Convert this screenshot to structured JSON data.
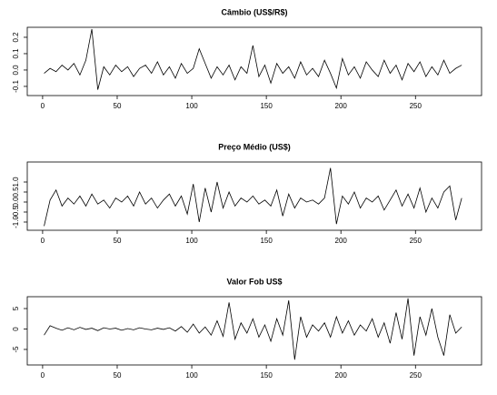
{
  "chart_data": [
    {
      "type": "line",
      "title": "Câmbio (US$/R$)",
      "color": "#000000",
      "x": [
        1,
        5,
        9,
        13,
        17,
        21,
        25,
        29,
        33,
        37,
        41,
        45,
        49,
        53,
        57,
        61,
        65,
        69,
        73,
        77,
        81,
        85,
        89,
        93,
        97,
        101,
        105,
        109,
        113,
        117,
        121,
        125,
        129,
        133,
        137,
        141,
        145,
        149,
        153,
        157,
        161,
        165,
        169,
        173,
        177,
        181,
        185,
        189,
        193,
        197,
        201,
        205,
        209,
        213,
        217,
        221,
        225,
        229,
        233,
        237,
        241,
        245,
        249,
        253,
        257,
        261,
        265,
        269,
        273,
        277,
        281
      ],
      "values": [
        -0.02,
        0.01,
        -0.01,
        0.03,
        0.0,
        0.04,
        -0.03,
        0.06,
        0.25,
        -0.12,
        0.02,
        -0.03,
        0.03,
        -0.01,
        0.02,
        -0.04,
        0.01,
        0.03,
        -0.02,
        0.05,
        -0.03,
        0.02,
        -0.05,
        0.04,
        -0.02,
        0.01,
        0.13,
        0.04,
        -0.05,
        0.02,
        -0.03,
        0.03,
        -0.06,
        0.02,
        -0.02,
        0.15,
        -0.04,
        0.03,
        -0.08,
        0.04,
        -0.02,
        0.02,
        -0.05,
        0.05,
        -0.03,
        0.01,
        -0.04,
        0.06,
        -0.02,
        -0.11,
        0.07,
        -0.03,
        0.02,
        -0.05,
        0.05,
        0.0,
        -0.04,
        0.06,
        -0.02,
        0.03,
        -0.06,
        0.04,
        -0.01,
        0.05,
        -0.04,
        0.02,
        -0.03,
        0.06,
        -0.02,
        0.01,
        0.03
      ],
      "xlim": [
        -10.3,
        294.3
      ],
      "xticks": [
        0,
        50,
        100,
        150,
        200,
        250
      ],
      "ylim": [
        -0.156,
        0.261
      ],
      "yticks": [
        -0.1,
        {
          "value": 0,
          "label": "0.0"
        },
        0.1,
        0.2
      ]
    },
    {
      "type": "line",
      "title": "Preço Médio (US$)",
      "color": "#000000",
      "x": [
        1,
        5,
        9,
        13,
        17,
        21,
        25,
        29,
        33,
        37,
        41,
        45,
        49,
        53,
        57,
        61,
        65,
        69,
        73,
        77,
        81,
        85,
        89,
        93,
        97,
        101,
        105,
        109,
        113,
        117,
        121,
        125,
        129,
        133,
        137,
        141,
        145,
        149,
        153,
        157,
        161,
        165,
        169,
        173,
        177,
        181,
        185,
        189,
        193,
        197,
        201,
        205,
        209,
        213,
        217,
        221,
        225,
        229,
        233,
        237,
        241,
        245,
        249,
        253,
        257,
        261,
        265,
        269,
        273,
        277,
        281
      ],
      "values": [
        -1.2,
        0.1,
        0.6,
        -0.2,
        0.2,
        -0.1,
        0.3,
        -0.2,
        0.4,
        -0.1,
        0.1,
        -0.3,
        0.2,
        0.0,
        0.3,
        -0.2,
        0.5,
        -0.1,
        0.2,
        -0.3,
        0.1,
        0.4,
        -0.2,
        0.3,
        -0.6,
        0.9,
        -1.0,
        0.7,
        -0.5,
        1.0,
        -0.3,
        0.5,
        -0.2,
        0.2,
        0.0,
        0.3,
        -0.1,
        0.1,
        -0.2,
        0.6,
        -0.7,
        0.4,
        -0.3,
        0.2,
        0.0,
        0.1,
        -0.1,
        0.2,
        1.7,
        -1.1,
        0.3,
        -0.1,
        0.5,
        -0.3,
        0.2,
        0.0,
        0.3,
        -0.4,
        0.1,
        0.6,
        -0.2,
        0.4,
        -0.3,
        0.7,
        -0.5,
        0.2,
        -0.3,
        0.5,
        0.8,
        -0.9,
        0.2
      ],
      "xlim": [
        -10.3,
        294.3
      ],
      "xticks": [
        0,
        50,
        100,
        150,
        200,
        250
      ],
      "ylim": [
        -1.41,
        2.0
      ],
      "yticks": [
        {
          "value": -1,
          "label": "-1.0"
        },
        -0.5,
        {
          "value": 0,
          "label": "0.0"
        },
        0.5,
        {
          "value": 1,
          "label": "1.0"
        }
      ]
    },
    {
      "type": "line",
      "title": "Valor Fob US$",
      "color": "#000000",
      "x": [
        1,
        5,
        9,
        13,
        17,
        21,
        25,
        29,
        33,
        37,
        41,
        45,
        49,
        53,
        57,
        61,
        65,
        69,
        73,
        77,
        81,
        85,
        89,
        93,
        97,
        101,
        105,
        109,
        113,
        117,
        121,
        125,
        129,
        133,
        137,
        141,
        145,
        149,
        153,
        157,
        161,
        165,
        169,
        173,
        177,
        181,
        185,
        189,
        193,
        197,
        201,
        205,
        209,
        213,
        217,
        221,
        225,
        229,
        233,
        237,
        241,
        245,
        249,
        253,
        257,
        261,
        265,
        269,
        273,
        277,
        281
      ],
      "values": [
        -1.5,
        0.8,
        0.2,
        -0.3,
        0.3,
        -0.2,
        0.4,
        -0.1,
        0.2,
        -0.4,
        0.3,
        0.0,
        0.2,
        -0.3,
        0.1,
        -0.2,
        0.3,
        0.0,
        -0.2,
        0.2,
        -0.1,
        0.3,
        -0.5,
        0.6,
        -0.8,
        1.2,
        -1.0,
        0.5,
        -1.5,
        2.0,
        -1.8,
        6.5,
        -2.5,
        1.5,
        -1.0,
        2.5,
        -2.0,
        1.0,
        -3.0,
        2.5,
        -1.5,
        7.0,
        -7.5,
        3.0,
        -2.0,
        1.0,
        -0.5,
        1.5,
        -2.0,
        3.0,
        -1.0,
        2.0,
        -1.5,
        1.0,
        -0.5,
        2.5,
        -2.0,
        1.5,
        -3.5,
        4.0,
        -2.5,
        7.5,
        -6.5,
        3.0,
        -1.5,
        5.0,
        -2.0,
        -6.5,
        3.5,
        -1.0,
        0.5
      ],
      "xlim": [
        -10.3,
        294.3
      ],
      "xticks": [
        0,
        50,
        100,
        150,
        200,
        250
      ],
      "ylim": [
        -8.8,
        7.9
      ],
      "yticks": [
        -5,
        0,
        5
      ]
    }
  ]
}
